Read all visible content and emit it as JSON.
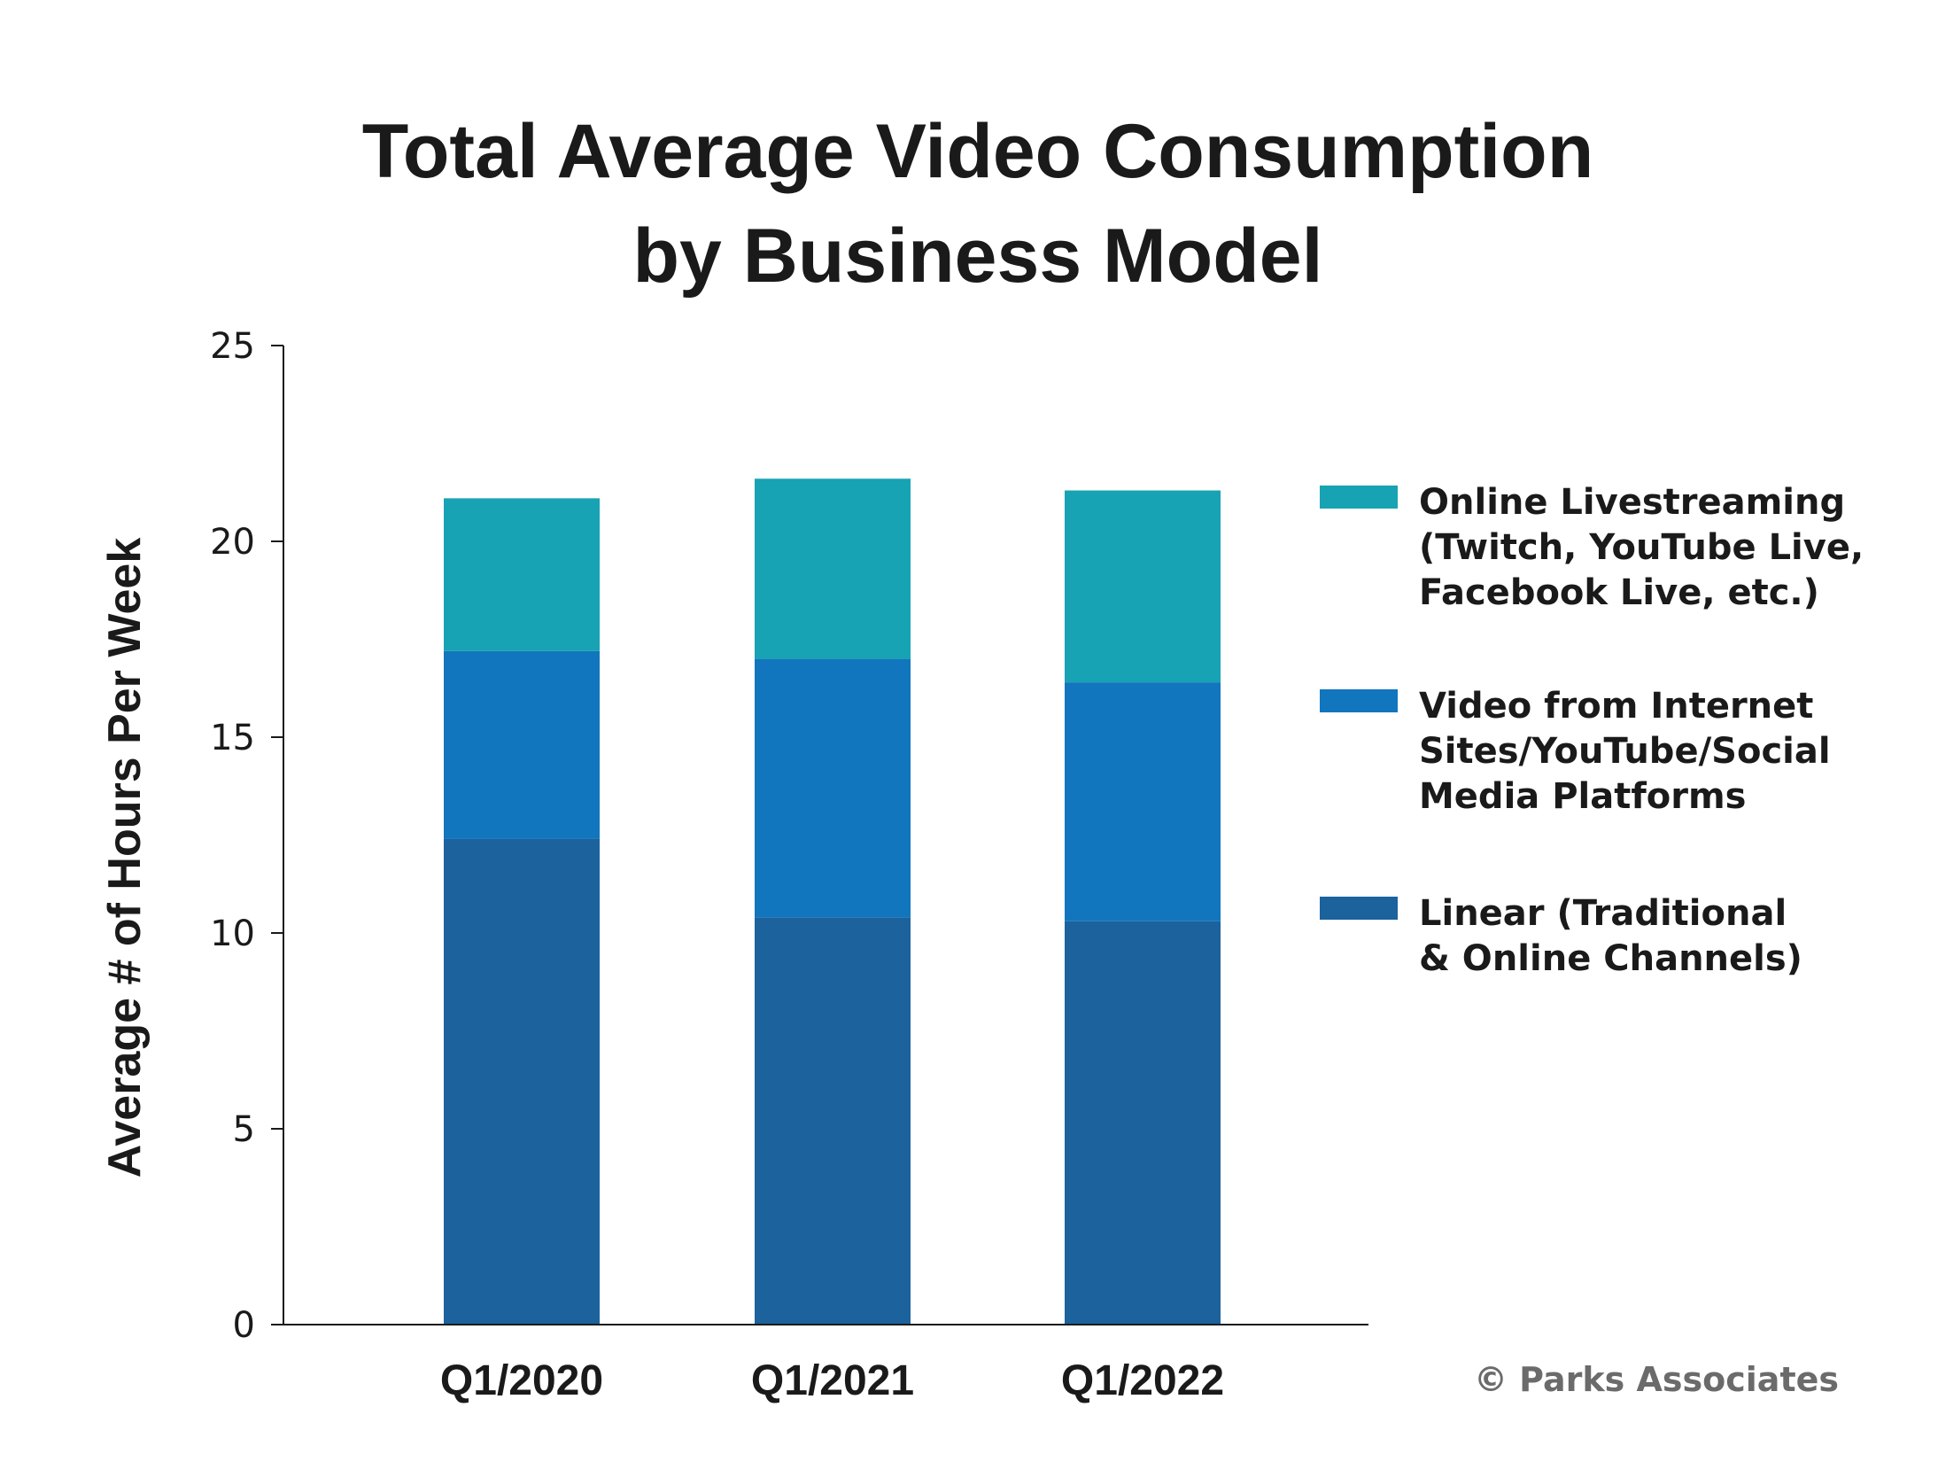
{
  "chart_data": {
    "type": "bar",
    "stacked": true,
    "title_lines": [
      "Total Average Video Consumption",
      "by Business Model"
    ],
    "ylabel": "Average # of Hours Per Week",
    "xlabel": "",
    "ylim": [
      0,
      25
    ],
    "yticks": [
      0,
      5,
      10,
      15,
      20,
      25
    ],
    "categories": [
      "Q1/2020",
      "Q1/2021",
      "Q1/2022"
    ],
    "grid": false,
    "legend_position": "right",
    "series": [
      {
        "name": "Linear (Traditional & Online Channels)",
        "legend_lines": [
          "Linear (Traditional",
          "& Online Channels)"
        ],
        "color": "#1c629c",
        "values": [
          12.4,
          10.4,
          10.3
        ]
      },
      {
        "name": "Video from Internet Sites/YouTube/Social Media Platforms",
        "legend_lines": [
          "Video from Internet",
          "Sites/YouTube/Social",
          "Media Platforms"
        ],
        "color": "#1176bd",
        "values": [
          4.8,
          6.6,
          6.1
        ]
      },
      {
        "name": "Online Livestreaming (Twitch, YouTube Live, Facebook Live, etc.)",
        "legend_lines": [
          "Online Livestreaming",
          "(Twitch, YouTube Live,",
          "Facebook Live, etc.)"
        ],
        "color": "#17a3b3",
        "values": [
          3.9,
          4.6,
          4.9
        ]
      }
    ],
    "credit": "© Parks Associates"
  }
}
